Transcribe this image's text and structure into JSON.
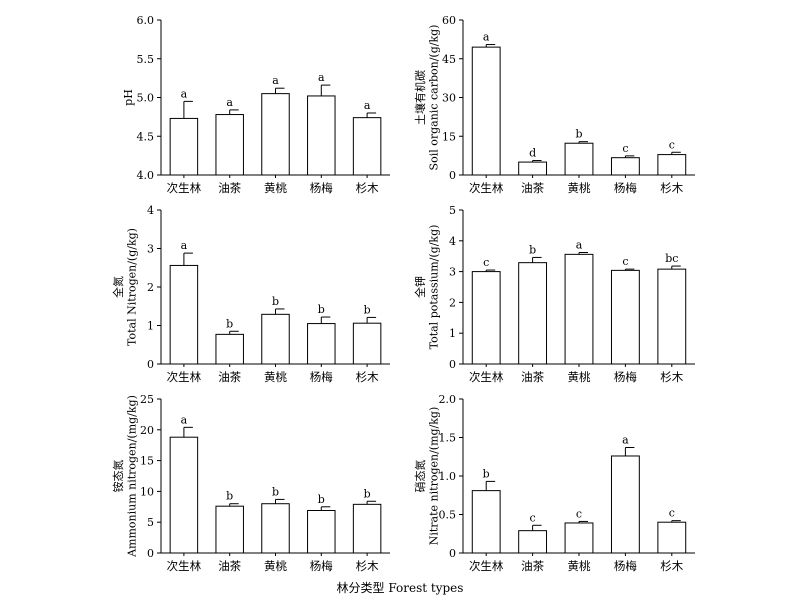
{
  "figure": {
    "x_title": "林分类型  Forest types",
    "categories": [
      "次生林",
      "油茶",
      "黄桃",
      "杨梅",
      "杉木"
    ]
  },
  "chart_data": [
    {
      "type": "bar",
      "ylabel_cn": "",
      "ylabel_en": "pH",
      "ylim": [
        4.0,
        6.0
      ],
      "yticks": [
        "4.0",
        "4.5",
        "5.0",
        "5.5",
        "6.0"
      ],
      "categories": [
        "次生林",
        "油茶",
        "黄桃",
        "杨梅",
        "杉木"
      ],
      "values": [
        4.73,
        4.78,
        5.05,
        5.02,
        4.74
      ],
      "errors": [
        0.22,
        0.06,
        0.07,
        0.14,
        0.06
      ],
      "letters": [
        "a",
        "a",
        "a",
        "a",
        "a"
      ]
    },
    {
      "type": "bar",
      "ylabel_cn": "土壤有机碳",
      "ylabel_en": "Soil organic carbon/(g/kg)",
      "ylim": [
        0,
        60
      ],
      "yticks": [
        "0",
        "15",
        "30",
        "45",
        "60"
      ],
      "categories": [
        "次生林",
        "油茶",
        "黄桃",
        "杨梅",
        "杉木"
      ],
      "values": [
        49.5,
        5.0,
        12.3,
        6.7,
        7.9
      ],
      "errors": [
        1.0,
        0.6,
        0.6,
        0.7,
        0.9
      ],
      "letters": [
        "a",
        "d",
        "b",
        "c",
        "c"
      ]
    },
    {
      "type": "bar",
      "ylabel_cn": "全氮",
      "ylabel_en": "Total Nitrogen/(g/kg)",
      "ylim": [
        0,
        4
      ],
      "yticks": [
        "0",
        "1",
        "2",
        "3",
        "4"
      ],
      "categories": [
        "次生林",
        "油茶",
        "黄桃",
        "杨梅",
        "杉木"
      ],
      "values": [
        2.56,
        0.77,
        1.29,
        1.05,
        1.06
      ],
      "errors": [
        0.32,
        0.08,
        0.14,
        0.17,
        0.15
      ],
      "letters": [
        "a",
        "b",
        "b",
        "b",
        "b"
      ]
    },
    {
      "type": "bar",
      "ylabel_cn": "全钾",
      "ylabel_en": "Total potassium/(g/kg)",
      "ylim": [
        0,
        5
      ],
      "yticks": [
        "0",
        "1",
        "2",
        "3",
        "4",
        "5"
      ],
      "categories": [
        "次生林",
        "油茶",
        "黄桃",
        "杨梅",
        "杉木"
      ],
      "values": [
        3.0,
        3.29,
        3.56,
        3.04,
        3.08
      ],
      "errors": [
        0.05,
        0.17,
        0.06,
        0.04,
        0.1
      ],
      "letters": [
        "c",
        "b",
        "a",
        "c",
        "bc"
      ]
    },
    {
      "type": "bar",
      "ylabel_cn": "铵态氮",
      "ylabel_en": "Ammonium nitrogen/(mg/kg)",
      "ylim": [
        0,
        25
      ],
      "yticks": [
        "0",
        "5",
        "10",
        "15",
        "20",
        "25"
      ],
      "categories": [
        "次生林",
        "油茶",
        "黄桃",
        "杨梅",
        "杉木"
      ],
      "values": [
        18.8,
        7.6,
        8.0,
        6.9,
        7.9
      ],
      "errors": [
        1.6,
        0.4,
        0.7,
        0.6,
        0.5
      ],
      "letters": [
        "a",
        "b",
        "b",
        "b",
        "b"
      ]
    },
    {
      "type": "bar",
      "ylabel_cn": "硝态氮",
      "ylabel_en": "Nitrate nitrogen/(mg/kg)",
      "ylim": [
        0,
        2.0
      ],
      "yticks": [
        "0",
        "0.5",
        "1.0",
        "1.5",
        "2.0"
      ],
      "categories": [
        "次生林",
        "油茶",
        "黄桃",
        "杨梅",
        "杉木"
      ],
      "values": [
        0.81,
        0.29,
        0.39,
        1.26,
        0.4
      ],
      "errors": [
        0.12,
        0.07,
        0.02,
        0.11,
        0.02
      ],
      "letters": [
        "b",
        "c",
        "c",
        "a",
        "c"
      ]
    }
  ]
}
